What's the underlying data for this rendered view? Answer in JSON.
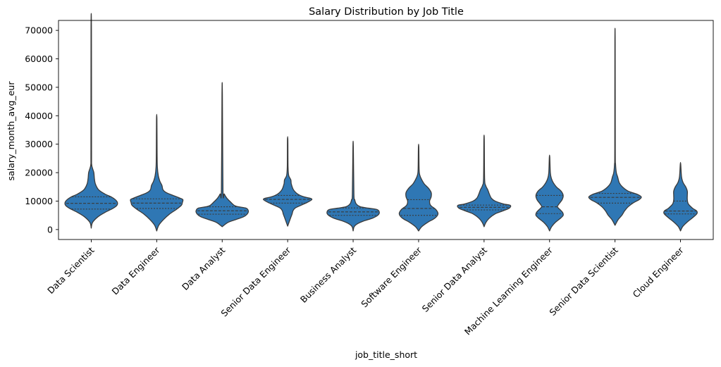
{
  "chart_data": {
    "type": "violin",
    "title": "Salary Distribution by Job Title",
    "xlabel": "job_title_short",
    "ylabel": "salary_month_avg_eur",
    "ylim": [
      -3500,
      73500
    ],
    "yticks": [
      0,
      10000,
      20000,
      30000,
      40000,
      50000,
      60000,
      70000
    ],
    "ytick_labels": [
      "0",
      "10000",
      "20000",
      "30000",
      "40000",
      "50000",
      "60000",
      "70000"
    ],
    "grid": false,
    "color": "#2f77b4",
    "inner": "quartile",
    "categories": [
      "Data Scientist",
      "Data Engineer",
      "Data Analyst",
      "Senior Data Engineer",
      "Business Analyst",
      "Software Engineer",
      "Senior Data Analyst",
      "Machine Learning Engineer",
      "Senior Data Scientist",
      "Cloud Engineer"
    ],
    "violins": [
      {
        "category": "Data Scientist",
        "min": 500,
        "max": 70500,
        "q1": 7200,
        "median": 9200,
        "q3": 11500,
        "profile": [
          [
            500,
            0
          ],
          [
            2500,
            0.05
          ],
          [
            4500,
            0.26
          ],
          [
            6000,
            0.52
          ],
          [
            7500,
            0.84
          ],
          [
            8500,
            0.98
          ],
          [
            9500,
            1.0
          ],
          [
            10500,
            0.92
          ],
          [
            11500,
            0.76
          ],
          [
            12500,
            0.52
          ],
          [
            14000,
            0.28
          ],
          [
            16000,
            0.16
          ],
          [
            18000,
            0.12
          ],
          [
            20000,
            0.1
          ],
          [
            21500,
            0.05
          ],
          [
            23000,
            0.015
          ],
          [
            27000,
            0.012
          ],
          [
            70500,
            0.008
          ]
        ]
      },
      {
        "category": "Data Engineer",
        "min": -500,
        "max": 39000,
        "q1": 7400,
        "median": 9300,
        "q3": 10800,
        "profile": [
          [
            -500,
            0
          ],
          [
            1500,
            0.08
          ],
          [
            3500,
            0.26
          ],
          [
            5500,
            0.5
          ],
          [
            7000,
            0.74
          ],
          [
            8500,
            0.94
          ],
          [
            9500,
            0.98
          ],
          [
            10500,
            1.0
          ],
          [
            11000,
            0.9
          ],
          [
            12000,
            0.62
          ],
          [
            13000,
            0.36
          ],
          [
            14000,
            0.24
          ],
          [
            15500,
            0.2
          ],
          [
            17000,
            0.12
          ],
          [
            19000,
            0.06
          ],
          [
            22000,
            0.025
          ],
          [
            27000,
            0.015
          ],
          [
            39000,
            0.008
          ]
        ]
      },
      {
        "category": "Data Analyst",
        "min": 1000,
        "max": 47500,
        "q1": 5400,
        "median": 6600,
        "q3": 8000,
        "profile": [
          [
            1000,
            0
          ],
          [
            2500,
            0.22
          ],
          [
            3500,
            0.52
          ],
          [
            4500,
            0.82
          ],
          [
            5500,
            0.96
          ],
          [
            6500,
            1.0
          ],
          [
            7500,
            0.92
          ],
          [
            8000,
            0.62
          ],
          [
            8500,
            0.46
          ],
          [
            9500,
            0.34
          ],
          [
            11000,
            0.18
          ],
          [
            12500,
            0.08
          ],
          [
            14000,
            0.03
          ],
          [
            47500,
            0.008
          ]
        ]
      },
      {
        "category": "Senior Data Engineer",
        "min": 1200,
        "max": 31500,
        "q1": 9300,
        "median": 10600,
        "q3": 12000,
        "profile": [
          [
            1200,
            0
          ],
          [
            3000,
            0.07
          ],
          [
            4500,
            0.13
          ],
          [
            5500,
            0.17
          ],
          [
            6500,
            0.2
          ],
          [
            7500,
            0.28
          ],
          [
            8500,
            0.5
          ],
          [
            9500,
            0.74
          ],
          [
            10500,
            0.92
          ],
          [
            11000,
            0.86
          ],
          [
            11500,
            0.62
          ],
          [
            12500,
            0.38
          ],
          [
            14000,
            0.22
          ],
          [
            16000,
            0.14
          ],
          [
            17500,
            0.12
          ],
          [
            19000,
            0.04
          ],
          [
            22000,
            0.015
          ],
          [
            31500,
            0.008
          ]
        ]
      },
      {
        "category": "Business Analyst",
        "min": -500,
        "max": 29000,
        "q1": 5000,
        "median": 6200,
        "q3": 7600,
        "profile": [
          [
            -500,
            0
          ],
          [
            1000,
            0.04
          ],
          [
            2000,
            0.16
          ],
          [
            3000,
            0.4
          ],
          [
            4000,
            0.74
          ],
          [
            5000,
            0.94
          ],
          [
            6000,
            1.0
          ],
          [
            7000,
            0.92
          ],
          [
            7500,
            0.6
          ],
          [
            8000,
            0.28
          ],
          [
            9000,
            0.12
          ],
          [
            10500,
            0.06
          ],
          [
            12500,
            0.03
          ],
          [
            29000,
            0.008
          ]
        ]
      },
      {
        "category": "Software Engineer",
        "min": -500,
        "max": 29000,
        "q1": 5000,
        "median": 7400,
        "q3": 10500,
        "profile": [
          [
            -500,
            0
          ],
          [
            1000,
            0.12
          ],
          [
            2500,
            0.34
          ],
          [
            4000,
            0.62
          ],
          [
            5500,
            0.74
          ],
          [
            7000,
            0.66
          ],
          [
            8500,
            0.46
          ],
          [
            10000,
            0.42
          ],
          [
            11500,
            0.48
          ],
          [
            13000,
            0.48
          ],
          [
            14500,
            0.38
          ],
          [
            16000,
            0.22
          ],
          [
            17500,
            0.12
          ],
          [
            19000,
            0.05
          ],
          [
            21000,
            0.02
          ],
          [
            29000,
            0.008
          ]
        ]
      },
      {
        "category": "Senior Data Analyst",
        "min": 1000,
        "max": 31500,
        "q1": 6900,
        "median": 7800,
        "q3": 8600,
        "profile": [
          [
            1000,
            0
          ],
          [
            2500,
            0.07
          ],
          [
            4000,
            0.2
          ],
          [
            5500,
            0.42
          ],
          [
            6500,
            0.7
          ],
          [
            7500,
            0.96
          ],
          [
            8500,
            1.0
          ],
          [
            9000,
            0.74
          ],
          [
            10000,
            0.42
          ],
          [
            11000,
            0.28
          ],
          [
            12500,
            0.2
          ],
          [
            14000,
            0.14
          ],
          [
            15500,
            0.06
          ],
          [
            18000,
            0.02
          ],
          [
            31500,
            0.008
          ]
        ]
      },
      {
        "category": "Machine Learning Engineer",
        "min": -500,
        "max": 25500,
        "q1": 5600,
        "median": 8000,
        "q3": 12000,
        "profile": [
          [
            -500,
            0
          ],
          [
            1000,
            0.08
          ],
          [
            2500,
            0.22
          ],
          [
            4000,
            0.42
          ],
          [
            5000,
            0.52
          ],
          [
            6000,
            0.5
          ],
          [
            7000,
            0.4
          ],
          [
            8000,
            0.3
          ],
          [
            9000,
            0.36
          ],
          [
            10500,
            0.48
          ],
          [
            12000,
            0.52
          ],
          [
            13500,
            0.44
          ],
          [
            15000,
            0.26
          ],
          [
            16500,
            0.14
          ],
          [
            18000,
            0.07
          ],
          [
            20000,
            0.03
          ],
          [
            25500,
            0.008
          ]
        ]
      },
      {
        "category": "Senior Data Scientist",
        "min": 1500,
        "max": 66000,
        "q1": 9300,
        "median": 11300,
        "q3": 12700,
        "profile": [
          [
            1500,
            0
          ],
          [
            3500,
            0.12
          ],
          [
            5000,
            0.26
          ],
          [
            6500,
            0.36
          ],
          [
            8000,
            0.5
          ],
          [
            9500,
            0.72
          ],
          [
            10500,
            0.92
          ],
          [
            11500,
            1.0
          ],
          [
            12500,
            0.82
          ],
          [
            13500,
            0.5
          ],
          [
            15000,
            0.28
          ],
          [
            16500,
            0.16
          ],
          [
            18500,
            0.1
          ],
          [
            20000,
            0.05
          ],
          [
            23000,
            0.02
          ],
          [
            28000,
            0.01
          ],
          [
            66000,
            0.006
          ]
        ]
      },
      {
        "category": "Cloud Engineer",
        "min": -500,
        "max": 23000,
        "q1": 5500,
        "median": 6500,
        "q3": 10000,
        "profile": [
          [
            -500,
            0
          ],
          [
            1000,
            0.08
          ],
          [
            2500,
            0.24
          ],
          [
            4000,
            0.44
          ],
          [
            5500,
            0.62
          ],
          [
            6500,
            0.62
          ],
          [
            7500,
            0.46
          ],
          [
            9000,
            0.3
          ],
          [
            10500,
            0.26
          ],
          [
            12000,
            0.26
          ],
          [
            13500,
            0.26
          ],
          [
            15000,
            0.2
          ],
          [
            16500,
            0.1
          ],
          [
            18500,
            0.04
          ],
          [
            23000,
            0.008
          ]
        ]
      }
    ]
  }
}
